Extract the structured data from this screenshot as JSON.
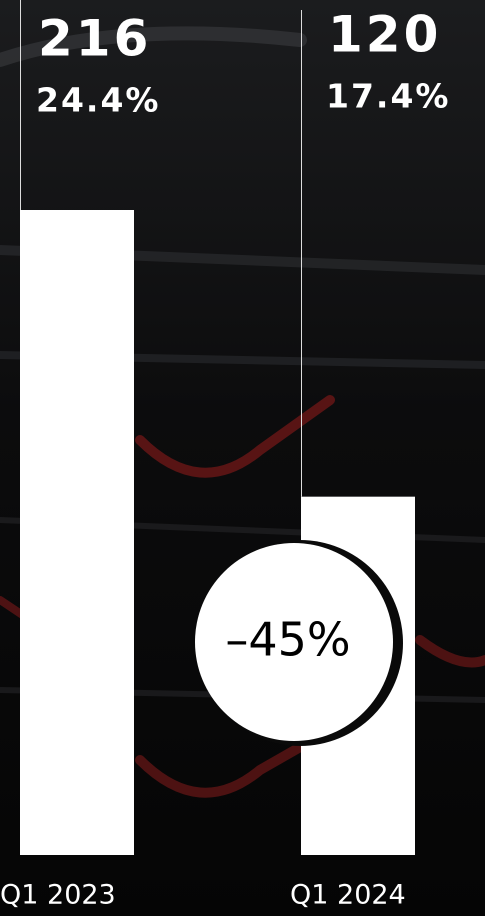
{
  "chart_data": {
    "type": "bar",
    "categories": [
      "Q1 2023",
      "Q1 2024"
    ],
    "values": [
      216,
      120
    ],
    "percent_labels": [
      "24.4%",
      "17.4%"
    ],
    "change_label": "–45%",
    "color": "#ffffff",
    "ylim": [
      0,
      216
    ]
  }
}
